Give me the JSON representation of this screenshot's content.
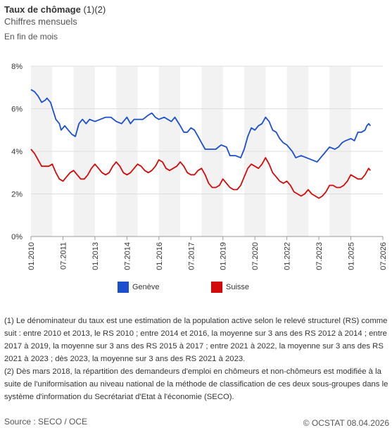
{
  "header": {
    "title_main": "Taux de chômage",
    "title_refs": " (1)(2)",
    "subtitle": "Chiffres mensuels",
    "unit_note": "En fin de mois"
  },
  "legend": [
    {
      "label": "Genève",
      "color": "#1a4fcf"
    },
    {
      "label": "Suisse",
      "color": "#d40a0a"
    }
  ],
  "chart_data": {
    "type": "line",
    "xlabel": "",
    "ylabel": "",
    "ylim": [
      0,
      8
    ],
    "yticks": [
      0,
      2,
      4,
      6,
      8
    ],
    "ytick_labels": [
      "0%",
      "2%",
      "4%",
      "6%",
      "8%"
    ],
    "xlim": [
      "2010-01",
      "2026-07"
    ],
    "xticks": [
      "2010-01",
      "2011-07",
      "2013-01",
      "2014-07",
      "2016-01",
      "2017-07",
      "2019-01",
      "2020-07",
      "2022-01",
      "2023-07",
      "2025-01",
      "2026-07"
    ],
    "xtick_labels": [
      "01.2010",
      "07.2011",
      "01.2013",
      "07.2014",
      "01.2016",
      "07.2017",
      "01.2019",
      "07.2020",
      "01.2022",
      "07.2023",
      "01.2025",
      "07.2026"
    ],
    "grid": "horizontal",
    "shaded_bands": [
      [
        "2010-01",
        "2011-01"
      ],
      [
        "2012-01",
        "2013-01"
      ],
      [
        "2014-01",
        "2015-01"
      ],
      [
        "2016-01",
        "2017-01"
      ],
      [
        "2018-01",
        "2019-01"
      ],
      [
        "2020-01",
        "2021-01"
      ],
      [
        "2022-01",
        "2023-01"
      ],
      [
        "2024-01",
        "2025-01"
      ]
    ],
    "legend_position": "bottom",
    "series": [
      {
        "name": "Genève",
        "color": "#1a4fcf",
        "points": [
          [
            "2010-01",
            6.9
          ],
          [
            "2010-03",
            6.8
          ],
          [
            "2010-05",
            6.6
          ],
          [
            "2010-07",
            6.3
          ],
          [
            "2010-09",
            6.4
          ],
          [
            "2010-10",
            6.5
          ],
          [
            "2010-12",
            6.3
          ],
          [
            "2011-03",
            5.5
          ],
          [
            "2011-05",
            5.3
          ],
          [
            "2011-06",
            5.0
          ],
          [
            "2011-08",
            5.2
          ],
          [
            "2011-10",
            5.0
          ],
          [
            "2011-12",
            4.8
          ],
          [
            "2012-02",
            4.7
          ],
          [
            "2012-04",
            5.3
          ],
          [
            "2012-06",
            5.5
          ],
          [
            "2012-08",
            5.3
          ],
          [
            "2012-10",
            5.5
          ],
          [
            "2013-01",
            5.4
          ],
          [
            "2013-04",
            5.5
          ],
          [
            "2013-07",
            5.6
          ],
          [
            "2013-10",
            5.6
          ],
          [
            "2014-01",
            5.4
          ],
          [
            "2014-04",
            5.3
          ],
          [
            "2014-07",
            5.6
          ],
          [
            "2014-09",
            5.3
          ],
          [
            "2014-11",
            5.5
          ],
          [
            "2015-01",
            5.5
          ],
          [
            "2015-04",
            5.5
          ],
          [
            "2015-07",
            5.7
          ],
          [
            "2015-09",
            5.8
          ],
          [
            "2015-11",
            5.6
          ],
          [
            "2016-01",
            5.5
          ],
          [
            "2016-04",
            5.6
          ],
          [
            "2016-06",
            5.5
          ],
          [
            "2016-08",
            5.4
          ],
          [
            "2016-10",
            5.6
          ],
          [
            "2017-01",
            5.2
          ],
          [
            "2017-03",
            4.9
          ],
          [
            "2017-05",
            4.9
          ],
          [
            "2017-07",
            5.1
          ],
          [
            "2017-09",
            5.0
          ],
          [
            "2017-11",
            4.7
          ],
          [
            "2018-01",
            4.4
          ],
          [
            "2018-03",
            4.1
          ],
          [
            "2018-06",
            4.1
          ],
          [
            "2018-09",
            4.1
          ],
          [
            "2018-12",
            4.3
          ],
          [
            "2019-03",
            4.2
          ],
          [
            "2019-05",
            3.8
          ],
          [
            "2019-08",
            3.8
          ],
          [
            "2019-11",
            3.7
          ],
          [
            "2020-01",
            4.1
          ],
          [
            "2020-03",
            4.7
          ],
          [
            "2020-05",
            5.1
          ],
          [
            "2020-07",
            5.0
          ],
          [
            "2020-09",
            5.2
          ],
          [
            "2020-11",
            5.3
          ],
          [
            "2021-01",
            5.6
          ],
          [
            "2021-03",
            5.4
          ],
          [
            "2021-05",
            5.0
          ],
          [
            "2021-07",
            4.9
          ],
          [
            "2021-09",
            4.6
          ],
          [
            "2021-11",
            4.4
          ],
          [
            "2022-01",
            4.3
          ],
          [
            "2022-04",
            4.0
          ],
          [
            "2022-06",
            3.7
          ],
          [
            "2022-09",
            3.8
          ],
          [
            "2022-12",
            3.7
          ],
          [
            "2023-03",
            3.6
          ],
          [
            "2023-06",
            3.5
          ],
          [
            "2023-09",
            3.8
          ],
          [
            "2023-11",
            4.0
          ],
          [
            "2024-01",
            4.2
          ],
          [
            "2024-04",
            4.1
          ],
          [
            "2024-06",
            4.2
          ],
          [
            "2024-08",
            4.4
          ],
          [
            "2024-10",
            4.5
          ],
          [
            "2025-01",
            4.6
          ],
          [
            "2025-03",
            4.5
          ],
          [
            "2025-05",
            4.9
          ],
          [
            "2025-07",
            4.9
          ],
          [
            "2025-09",
            5.0
          ],
          [
            "2025-10",
            5.2
          ],
          [
            "2025-11",
            5.3
          ],
          [
            "2025-12",
            5.2
          ]
        ]
      },
      {
        "name": "Suisse",
        "color": "#d40a0a",
        "points": [
          [
            "2010-01",
            4.1
          ],
          [
            "2010-03",
            3.9
          ],
          [
            "2010-05",
            3.6
          ],
          [
            "2010-07",
            3.3
          ],
          [
            "2010-09",
            3.3
          ],
          [
            "2010-11",
            3.3
          ],
          [
            "2011-01",
            3.4
          ],
          [
            "2011-03",
            3.0
          ],
          [
            "2011-05",
            2.7
          ],
          [
            "2011-07",
            2.6
          ],
          [
            "2011-09",
            2.8
          ],
          [
            "2011-11",
            3.0
          ],
          [
            "2012-01",
            3.1
          ],
          [
            "2012-03",
            2.9
          ],
          [
            "2012-05",
            2.7
          ],
          [
            "2012-07",
            2.7
          ],
          [
            "2012-09",
            2.9
          ],
          [
            "2012-11",
            3.2
          ],
          [
            "2013-01",
            3.4
          ],
          [
            "2013-03",
            3.2
          ],
          [
            "2013-05",
            3.0
          ],
          [
            "2013-07",
            2.9
          ],
          [
            "2013-09",
            3.0
          ],
          [
            "2013-11",
            3.3
          ],
          [
            "2014-01",
            3.5
          ],
          [
            "2014-03",
            3.3
          ],
          [
            "2014-05",
            3.0
          ],
          [
            "2014-07",
            2.9
          ],
          [
            "2014-09",
            3.0
          ],
          [
            "2014-11",
            3.2
          ],
          [
            "2015-01",
            3.4
          ],
          [
            "2015-03",
            3.3
          ],
          [
            "2015-05",
            3.1
          ],
          [
            "2015-07",
            3.0
          ],
          [
            "2015-09",
            3.1
          ],
          [
            "2015-11",
            3.3
          ],
          [
            "2016-01",
            3.6
          ],
          [
            "2016-03",
            3.5
          ],
          [
            "2016-05",
            3.2
          ],
          [
            "2016-07",
            3.1
          ],
          [
            "2016-09",
            3.2
          ],
          [
            "2016-11",
            3.3
          ],
          [
            "2017-01",
            3.5
          ],
          [
            "2017-03",
            3.3
          ],
          [
            "2017-05",
            3.0
          ],
          [
            "2017-07",
            2.9
          ],
          [
            "2017-09",
            2.9
          ],
          [
            "2017-11",
            3.1
          ],
          [
            "2018-01",
            3.2
          ],
          [
            "2018-03",
            2.9
          ],
          [
            "2018-05",
            2.5
          ],
          [
            "2018-07",
            2.3
          ],
          [
            "2018-09",
            2.3
          ],
          [
            "2018-11",
            2.4
          ],
          [
            "2019-01",
            2.7
          ],
          [
            "2019-03",
            2.5
          ],
          [
            "2019-05",
            2.3
          ],
          [
            "2019-07",
            2.2
          ],
          [
            "2019-09",
            2.2
          ],
          [
            "2019-11",
            2.4
          ],
          [
            "2020-01",
            2.8
          ],
          [
            "2020-03",
            3.2
          ],
          [
            "2020-05",
            3.4
          ],
          [
            "2020-07",
            3.3
          ],
          [
            "2020-09",
            3.2
          ],
          [
            "2020-11",
            3.4
          ],
          [
            "2021-01",
            3.7
          ],
          [
            "2021-03",
            3.4
          ],
          [
            "2021-05",
            3.0
          ],
          [
            "2021-07",
            2.8
          ],
          [
            "2021-09",
            2.6
          ],
          [
            "2021-11",
            2.5
          ],
          [
            "2022-01",
            2.6
          ],
          [
            "2022-03",
            2.4
          ],
          [
            "2022-05",
            2.1
          ],
          [
            "2022-07",
            2.0
          ],
          [
            "2022-09",
            1.9
          ],
          [
            "2022-11",
            2.0
          ],
          [
            "2023-01",
            2.2
          ],
          [
            "2023-03",
            2.0
          ],
          [
            "2023-05",
            1.9
          ],
          [
            "2023-07",
            1.8
          ],
          [
            "2023-09",
            1.9
          ],
          [
            "2023-11",
            2.1
          ],
          [
            "2024-01",
            2.4
          ],
          [
            "2024-03",
            2.4
          ],
          [
            "2024-05",
            2.3
          ],
          [
            "2024-07",
            2.3
          ],
          [
            "2024-09",
            2.4
          ],
          [
            "2024-11",
            2.6
          ],
          [
            "2025-01",
            2.9
          ],
          [
            "2025-03",
            2.8
          ],
          [
            "2025-05",
            2.7
          ],
          [
            "2025-07",
            2.7
          ],
          [
            "2025-09",
            2.9
          ],
          [
            "2025-11",
            3.2
          ],
          [
            "2025-12",
            3.1
          ]
        ]
      }
    ]
  },
  "notes": [
    "(1) Le dénominateur du taux est une estimation de la population active selon le relevé structurel (RS) comme suit : entre 2010 et 2013, le RS 2010 ; entre 2014 et 2016, la moyenne sur 3 ans des RS 2012 à 2014 ; entre 2017 à 2019, la moyenne sur 3 ans des RS 2015 à 2017 ; entre 2021 à 2022, la moyenne sur 3 ans des RS 2021 à 2023 ; dès 2023, la moyenne sur 3 ans des RS 2021 à 2023.",
    "(2) Dès mars 2018, la répartition des demandeurs d'emploi en chômeurs et non-chômeurs est modifiée à la suite de l'uniformisation au niveau national de la méthode de classification de ces deux sous-groupes dans le système d'information du Secrétariat d'Etat à l'économie (SECO)."
  ],
  "footer": {
    "source": "Source : SECO / OCE",
    "copyright": "© OCSTAT 08.04.2026"
  }
}
